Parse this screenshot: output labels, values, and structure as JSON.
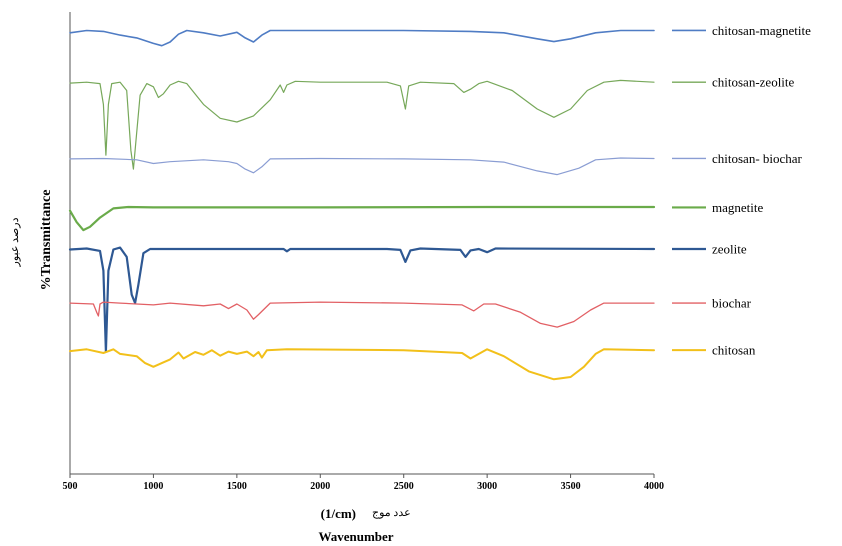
{
  "chart_data": {
    "type": "line",
    "xlabel_unit": "(1/cm)",
    "xlabel_fa": "عدد موج",
    "xlabel": "Wavenumber",
    "ylabel": "%Transmittance",
    "ylabel_fa": "درصد عبور",
    "xlim": [
      500,
      4000
    ],
    "xticks": [
      500,
      1000,
      1500,
      2000,
      2500,
      3000,
      3500,
      4000
    ],
    "grid": false,
    "legend_placement": "right, aligned with each trace",
    "series": [
      {
        "name": "chitosan-magnetite",
        "color": "#4f7cc4",
        "width": 1.6,
        "baseline": 0.96,
        "points": [
          [
            500,
            0.955
          ],
          [
            600,
            0.96
          ],
          [
            700,
            0.958
          ],
          [
            800,
            0.95
          ],
          [
            900,
            0.944
          ],
          [
            1000,
            0.932
          ],
          [
            1050,
            0.927
          ],
          [
            1100,
            0.935
          ],
          [
            1150,
            0.952
          ],
          [
            1200,
            0.96
          ],
          [
            1300,
            0.955
          ],
          [
            1400,
            0.948
          ],
          [
            1500,
            0.956
          ],
          [
            1550,
            0.944
          ],
          [
            1600,
            0.935
          ],
          [
            1650,
            0.95
          ],
          [
            1700,
            0.96
          ],
          [
            2000,
            0.96
          ],
          [
            2500,
            0.96
          ],
          [
            2900,
            0.958
          ],
          [
            3100,
            0.955
          ],
          [
            3300,
            0.942
          ],
          [
            3400,
            0.936
          ],
          [
            3500,
            0.942
          ],
          [
            3650,
            0.955
          ],
          [
            3800,
            0.96
          ],
          [
            4000,
            0.96
          ]
        ]
      },
      {
        "name": "chitosan-zeolite",
        "color": "#77a85a",
        "width": 1.2,
        "baseline": 0.848,
        "points": [
          [
            500,
            0.846
          ],
          [
            600,
            0.848
          ],
          [
            680,
            0.845
          ],
          [
            700,
            0.8
          ],
          [
            715,
            0.69
          ],
          [
            730,
            0.8
          ],
          [
            750,
            0.845
          ],
          [
            800,
            0.848
          ],
          [
            840,
            0.83
          ],
          [
            865,
            0.7
          ],
          [
            880,
            0.66
          ],
          [
            895,
            0.72
          ],
          [
            920,
            0.82
          ],
          [
            960,
            0.845
          ],
          [
            1000,
            0.838
          ],
          [
            1030,
            0.815
          ],
          [
            1060,
            0.823
          ],
          [
            1100,
            0.842
          ],
          [
            1150,
            0.85
          ],
          [
            1200,
            0.845
          ],
          [
            1300,
            0.8
          ],
          [
            1400,
            0.77
          ],
          [
            1500,
            0.762
          ],
          [
            1600,
            0.775
          ],
          [
            1700,
            0.81
          ],
          [
            1760,
            0.842
          ],
          [
            1780,
            0.826
          ],
          [
            1800,
            0.842
          ],
          [
            1850,
            0.85
          ],
          [
            2000,
            0.848
          ],
          [
            2400,
            0.848
          ],
          [
            2480,
            0.84
          ],
          [
            2510,
            0.79
          ],
          [
            2530,
            0.84
          ],
          [
            2600,
            0.848
          ],
          [
            2800,
            0.845
          ],
          [
            2860,
            0.826
          ],
          [
            2900,
            0.833
          ],
          [
            2950,
            0.845
          ],
          [
            3000,
            0.85
          ],
          [
            3150,
            0.83
          ],
          [
            3300,
            0.79
          ],
          [
            3400,
            0.772
          ],
          [
            3500,
            0.79
          ],
          [
            3600,
            0.83
          ],
          [
            3700,
            0.848
          ],
          [
            3800,
            0.852
          ],
          [
            4000,
            0.848
          ]
        ]
      },
      {
        "name": "chitosan- biochar",
        "color": "#8a9dd3",
        "width": 1.2,
        "baseline": 0.683,
        "points": [
          [
            500,
            0.682
          ],
          [
            700,
            0.683
          ],
          [
            900,
            0.68
          ],
          [
            1000,
            0.672
          ],
          [
            1100,
            0.676
          ],
          [
            1300,
            0.68
          ],
          [
            1450,
            0.676
          ],
          [
            1500,
            0.672
          ],
          [
            1550,
            0.66
          ],
          [
            1600,
            0.652
          ],
          [
            1650,
            0.665
          ],
          [
            1700,
            0.682
          ],
          [
            2000,
            0.683
          ],
          [
            2500,
            0.682
          ],
          [
            2900,
            0.68
          ],
          [
            3100,
            0.675
          ],
          [
            3300,
            0.656
          ],
          [
            3420,
            0.648
          ],
          [
            3550,
            0.662
          ],
          [
            3650,
            0.68
          ],
          [
            3800,
            0.684
          ],
          [
            4000,
            0.683
          ]
        ]
      },
      {
        "name": "magnetite",
        "color": "#6aab4a",
        "width": 2.2,
        "baseline": 0.577,
        "points": [
          [
            500,
            0.57
          ],
          [
            540,
            0.545
          ],
          [
            580,
            0.528
          ],
          [
            620,
            0.535
          ],
          [
            680,
            0.555
          ],
          [
            760,
            0.575
          ],
          [
            850,
            0.578
          ],
          [
            1000,
            0.577
          ],
          [
            2000,
            0.577
          ],
          [
            3000,
            0.578
          ],
          [
            4000,
            0.578
          ]
        ]
      },
      {
        "name": "zeolite",
        "color": "#2e5893",
        "width": 2.2,
        "baseline": 0.487,
        "points": [
          [
            500,
            0.486
          ],
          [
            600,
            0.488
          ],
          [
            680,
            0.483
          ],
          [
            700,
            0.44
          ],
          [
            715,
            0.265
          ],
          [
            730,
            0.44
          ],
          [
            760,
            0.486
          ],
          [
            800,
            0.49
          ],
          [
            840,
            0.47
          ],
          [
            870,
            0.388
          ],
          [
            890,
            0.37
          ],
          [
            910,
            0.41
          ],
          [
            940,
            0.478
          ],
          [
            980,
            0.487
          ],
          [
            1200,
            0.487
          ],
          [
            1780,
            0.487
          ],
          [
            1800,
            0.482
          ],
          [
            1820,
            0.487
          ],
          [
            2400,
            0.487
          ],
          [
            2480,
            0.485
          ],
          [
            2510,
            0.459
          ],
          [
            2540,
            0.484
          ],
          [
            2600,
            0.488
          ],
          [
            2840,
            0.485
          ],
          [
            2870,
            0.47
          ],
          [
            2900,
            0.484
          ],
          [
            2950,
            0.487
          ],
          [
            3000,
            0.48
          ],
          [
            3050,
            0.488
          ],
          [
            4000,
            0.487
          ]
        ]
      },
      {
        "name": "biochar",
        "color": "#e26065",
        "width": 1.3,
        "baseline": 0.37,
        "points": [
          [
            500,
            0.37
          ],
          [
            640,
            0.368
          ],
          [
            660,
            0.35
          ],
          [
            670,
            0.342
          ],
          [
            680,
            0.368
          ],
          [
            700,
            0.372
          ],
          [
            800,
            0.37
          ],
          [
            1000,
            0.366
          ],
          [
            1100,
            0.37
          ],
          [
            1300,
            0.364
          ],
          [
            1400,
            0.368
          ],
          [
            1450,
            0.358
          ],
          [
            1500,
            0.368
          ],
          [
            1560,
            0.355
          ],
          [
            1600,
            0.335
          ],
          [
            1630,
            0.345
          ],
          [
            1700,
            0.37
          ],
          [
            2000,
            0.372
          ],
          [
            2500,
            0.37
          ],
          [
            2850,
            0.366
          ],
          [
            2920,
            0.353
          ],
          [
            2980,
            0.368
          ],
          [
            3050,
            0.368
          ],
          [
            3200,
            0.35
          ],
          [
            3320,
            0.326
          ],
          [
            3420,
            0.318
          ],
          [
            3520,
            0.33
          ],
          [
            3620,
            0.355
          ],
          [
            3700,
            0.37
          ],
          [
            4000,
            0.37
          ]
        ]
      },
      {
        "name": "chitosan",
        "color": "#f2c01a",
        "width": 2.0,
        "baseline": 0.268,
        "points": [
          [
            500,
            0.266
          ],
          [
            600,
            0.27
          ],
          [
            700,
            0.262
          ],
          [
            760,
            0.27
          ],
          [
            800,
            0.26
          ],
          [
            900,
            0.255
          ],
          [
            950,
            0.24
          ],
          [
            1000,
            0.232
          ],
          [
            1050,
            0.24
          ],
          [
            1100,
            0.248
          ],
          [
            1150,
            0.263
          ],
          [
            1180,
            0.25
          ],
          [
            1250,
            0.264
          ],
          [
            1300,
            0.258
          ],
          [
            1350,
            0.268
          ],
          [
            1400,
            0.256
          ],
          [
            1450,
            0.265
          ],
          [
            1500,
            0.26
          ],
          [
            1560,
            0.265
          ],
          [
            1600,
            0.255
          ],
          [
            1630,
            0.264
          ],
          [
            1650,
            0.252
          ],
          [
            1680,
            0.268
          ],
          [
            1800,
            0.27
          ],
          [
            2500,
            0.268
          ],
          [
            2850,
            0.262
          ],
          [
            2900,
            0.25
          ],
          [
            2950,
            0.26
          ],
          [
            3000,
            0.27
          ],
          [
            3100,
            0.255
          ],
          [
            3250,
            0.222
          ],
          [
            3400,
            0.205
          ],
          [
            3500,
            0.21
          ],
          [
            3580,
            0.232
          ],
          [
            3650,
            0.26
          ],
          [
            3700,
            0.27
          ],
          [
            4000,
            0.268
          ]
        ]
      }
    ]
  }
}
